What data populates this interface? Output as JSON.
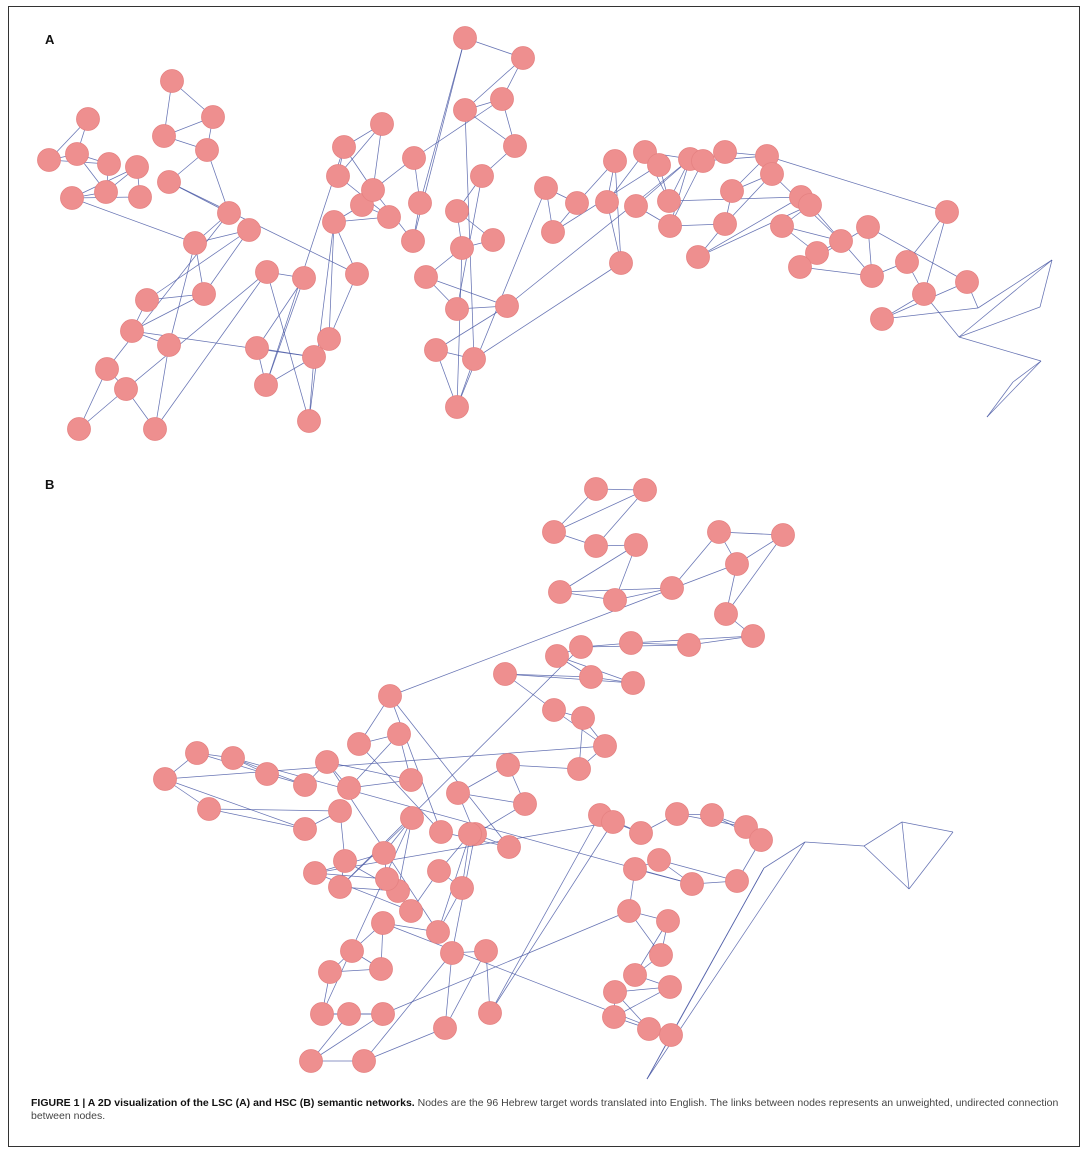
{
  "panels": {
    "a_label": "A",
    "b_label": "B"
  },
  "colors": {
    "node_fill": "#ee8f8f",
    "edge": "#4b5aa6",
    "border": "#333333"
  },
  "caption": {
    "bold": "FIGURE 1 | A 2D visualization of the LSC (A) and HSC (B) semantic networks.",
    "text": " Nodes are the 96 Hebrew target words translated into English. The links between nodes represents an unweighted, undirected connection between nodes."
  },
  "networks": [
    {
      "id": "A",
      "nodes": [
        "",
        "",
        "",
        "",
        "",
        "",
        "",
        "",
        "",
        "",
        "",
        "",
        "",
        "",
        "",
        "",
        "",
        "",
        "",
        "",
        "",
        "",
        "",
        "",
        "",
        "",
        "",
        "",
        "",
        "",
        "",
        "",
        "",
        "",
        "",
        "",
        "",
        "",
        "",
        "",
        "",
        "",
        "",
        "",
        "",
        "",
        "",
        "",
        "",
        "",
        "",
        "",
        "",
        "",
        "",
        "",
        "",
        "",
        "",
        "",
        "",
        "",
        "",
        "",
        "",
        "",
        "",
        "",
        "",
        "",
        "",
        "",
        "",
        "",
        "",
        "",
        "",
        "",
        "",
        "",
        "",
        "",
        "",
        "",
        "",
        "",
        "",
        "",
        ""
      ],
      "edges": [
        [
          0,
          1
        ],
        [
          0,
          2
        ],
        [
          1,
          3
        ],
        [
          2,
          3
        ],
        [
          2,
          4
        ],
        [
          3,
          4
        ],
        [
          4,
          5
        ],
        [
          4,
          6
        ],
        [
          5,
          6
        ],
        [
          6,
          7
        ],
        [
          5,
          7
        ],
        [
          1,
          2
        ],
        [
          8,
          9
        ],
        [
          8,
          10
        ],
        [
          9,
          10
        ],
        [
          10,
          11
        ],
        [
          11,
          12
        ],
        [
          12,
          13
        ],
        [
          11,
          13
        ],
        [
          9,
          11
        ],
        [
          13,
          14
        ],
        [
          14,
          15
        ],
        [
          14,
          16
        ],
        [
          15,
          16
        ],
        [
          16,
          17
        ],
        [
          15,
          17
        ],
        [
          17,
          18
        ],
        [
          16,
          18
        ],
        [
          18,
          19
        ],
        [
          14,
          19
        ],
        [
          20,
          21
        ],
        [
          20,
          22
        ],
        [
          21,
          22
        ],
        [
          22,
          23
        ],
        [
          23,
          24
        ],
        [
          24,
          25
        ],
        [
          22,
          24
        ],
        [
          25,
          26
        ],
        [
          26,
          27
        ],
        [
          25,
          27
        ],
        [
          27,
          28
        ],
        [
          26,
          28
        ],
        [
          28,
          29
        ],
        [
          24,
          29
        ],
        [
          30,
          31
        ],
        [
          31,
          32
        ],
        [
          30,
          32
        ],
        [
          32,
          33
        ],
        [
          33,
          34
        ],
        [
          34,
          35
        ],
        [
          32,
          34
        ],
        [
          35,
          36
        ],
        [
          36,
          37
        ],
        [
          35,
          37
        ],
        [
          37,
          38
        ],
        [
          38,
          39
        ],
        [
          36,
          38
        ],
        [
          39,
          40
        ],
        [
          40,
          41
        ],
        [
          41,
          42
        ],
        [
          40,
          42
        ],
        [
          42,
          43
        ],
        [
          43,
          44
        ],
        [
          44,
          45
        ],
        [
          43,
          45
        ],
        [
          45,
          46
        ],
        [
          46,
          47
        ],
        [
          44,
          46
        ],
        [
          47,
          48
        ],
        [
          48,
          49
        ],
        [
          49,
          50
        ],
        [
          48,
          50
        ],
        [
          50,
          51
        ],
        [
          51,
          52
        ],
        [
          52,
          53
        ],
        [
          51,
          53
        ],
        [
          53,
          54
        ],
        [
          54,
          55
        ],
        [
          55,
          56
        ],
        [
          54,
          56
        ],
        [
          56,
          57
        ],
        [
          57,
          58
        ],
        [
          58,
          59
        ],
        [
          57,
          59
        ],
        [
          59,
          60
        ],
        [
          60,
          61
        ],
        [
          61,
          62
        ],
        [
          60,
          62
        ],
        [
          62,
          63
        ],
        [
          63,
          64
        ],
        [
          64,
          65
        ],
        [
          63,
          65
        ],
        [
          65,
          66
        ],
        [
          66,
          67
        ],
        [
          67,
          68
        ],
        [
          66,
          68
        ],
        [
          68,
          69
        ],
        [
          69,
          70
        ],
        [
          70,
          71
        ],
        [
          69,
          71
        ],
        [
          71,
          72
        ],
        [
          72,
          73
        ],
        [
          73,
          74
        ],
        [
          72,
          74
        ],
        [
          74,
          75
        ],
        [
          75,
          76
        ],
        [
          76,
          77
        ],
        [
          75,
          77
        ],
        [
          77,
          78
        ],
        [
          78,
          79
        ],
        [
          79,
          80
        ],
        [
          78,
          80
        ],
        [
          80,
          81
        ],
        [
          81,
          82
        ],
        [
          82,
          83
        ],
        [
          81,
          83
        ],
        [
          83,
          84
        ],
        [
          84,
          85
        ],
        [
          85,
          86
        ],
        [
          84,
          86
        ],
        [
          86,
          87
        ],
        [
          87,
          88
        ],
        [
          88,
          89
        ],
        [
          87,
          89
        ],
        [
          89,
          90
        ],
        [
          90,
          91
        ],
        [
          91,
          92
        ],
        [
          90,
          92
        ],
        [
          92,
          93
        ],
        [
          93,
          94
        ],
        [
          94,
          95
        ],
        [
          93,
          95
        ],
        [
          6,
          14
        ],
        [
          13,
          20
        ],
        [
          19,
          23
        ],
        [
          29,
          32
        ],
        [
          12,
          31
        ],
        [
          38,
          41
        ],
        [
          39,
          45
        ],
        [
          47,
          52
        ],
        [
          50,
          56
        ],
        [
          55,
          61
        ],
        [
          58,
          64
        ],
        [
          63,
          69
        ],
        [
          68,
          74
        ],
        [
          73,
          79
        ],
        [
          77,
          83
        ],
        [
          82,
          88
        ],
        [
          86,
          92
        ],
        [
          18,
          28
        ],
        [
          27,
          36
        ],
        [
          44,
          55
        ],
        [
          53,
          66
        ],
        [
          65,
          76
        ],
        [
          71,
          85
        ]
      ]
    },
    {
      "id": "B",
      "nodes": [
        "",
        "",
        "",
        "",
        "",
        "",
        "",
        "",
        "",
        "",
        "",
        "",
        "",
        "",
        "",
        "",
        "",
        "",
        "",
        "",
        "",
        "",
        "",
        "",
        "",
        "",
        "",
        "",
        "",
        "",
        "",
        "",
        "",
        "",
        "",
        "",
        "",
        "",
        "",
        "",
        "",
        "",
        "",
        "",
        "",
        "",
        "",
        "",
        "",
        "",
        "",
        "",
        "",
        "",
        "",
        "",
        "",
        "",
        "",
        "",
        "",
        "",
        "",
        "",
        "",
        "",
        "",
        "",
        "",
        "",
        "",
        "",
        "",
        "",
        "",
        "",
        "",
        "",
        "",
        "",
        "",
        "",
        "",
        "",
        "",
        "",
        "",
        "",
        ""
      ],
      "edges": [
        [
          0,
          1
        ],
        [
          0,
          2
        ],
        [
          1,
          2
        ],
        [
          2,
          3
        ],
        [
          3,
          4
        ],
        [
          1,
          3
        ],
        [
          4,
          5
        ],
        [
          5,
          6
        ],
        [
          4,
          6
        ],
        [
          6,
          7
        ],
        [
          7,
          8
        ],
        [
          5,
          7
        ],
        [
          8,
          9
        ],
        [
          9,
          10
        ],
        [
          8,
          10
        ],
        [
          10,
          11
        ],
        [
          11,
          12
        ],
        [
          9,
          11
        ],
        [
          12,
          13
        ],
        [
          13,
          14
        ],
        [
          12,
          14
        ],
        [
          14,
          15
        ],
        [
          15,
          16
        ],
        [
          13,
          15
        ],
        [
          16,
          17
        ],
        [
          17,
          18
        ],
        [
          16,
          18
        ],
        [
          18,
          19
        ],
        [
          19,
          20
        ],
        [
          17,
          19
        ],
        [
          20,
          21
        ],
        [
          21,
          22
        ],
        [
          20,
          22
        ],
        [
          22,
          23
        ],
        [
          23,
          24
        ],
        [
          21,
          23
        ],
        [
          24,
          25
        ],
        [
          25,
          26
        ],
        [
          24,
          26
        ],
        [
          26,
          27
        ],
        [
          27,
          28
        ],
        [
          25,
          27
        ],
        [
          28,
          29
        ],
        [
          29,
          30
        ],
        [
          28,
          30
        ],
        [
          30,
          31
        ],
        [
          31,
          32
        ],
        [
          29,
          31
        ],
        [
          32,
          33
        ],
        [
          33,
          34
        ],
        [
          32,
          34
        ],
        [
          34,
          35
        ],
        [
          35,
          36
        ],
        [
          33,
          35
        ],
        [
          36,
          37
        ],
        [
          37,
          38
        ],
        [
          36,
          38
        ],
        [
          38,
          39
        ],
        [
          39,
          40
        ],
        [
          37,
          39
        ],
        [
          40,
          41
        ],
        [
          41,
          42
        ],
        [
          40,
          42
        ],
        [
          42,
          43
        ],
        [
          43,
          44
        ],
        [
          41,
          43
        ],
        [
          44,
          45
        ],
        [
          45,
          46
        ],
        [
          44,
          46
        ],
        [
          46,
          47
        ],
        [
          47,
          48
        ],
        [
          45,
          47
        ],
        [
          48,
          49
        ],
        [
          49,
          50
        ],
        [
          48,
          50
        ],
        [
          50,
          51
        ],
        [
          51,
          52
        ],
        [
          49,
          51
        ],
        [
          52,
          53
        ],
        [
          53,
          54
        ],
        [
          52,
          54
        ],
        [
          54,
          55
        ],
        [
          55,
          56
        ],
        [
          53,
          55
        ],
        [
          56,
          57
        ],
        [
          57,
          58
        ],
        [
          56,
          58
        ],
        [
          58,
          59
        ],
        [
          59,
          60
        ],
        [
          57,
          59
        ],
        [
          60,
          61
        ],
        [
          61,
          62
        ],
        [
          60,
          62
        ],
        [
          62,
          63
        ],
        [
          63,
          64
        ],
        [
          61,
          63
        ],
        [
          64,
          65
        ],
        [
          65,
          66
        ],
        [
          64,
          66
        ],
        [
          66,
          67
        ],
        [
          67,
          68
        ],
        [
          65,
          67
        ],
        [
          68,
          69
        ],
        [
          69,
          70
        ],
        [
          68,
          70
        ],
        [
          70,
          71
        ],
        [
          71,
          72
        ],
        [
          69,
          71
        ],
        [
          72,
          73
        ],
        [
          73,
          74
        ],
        [
          72,
          74
        ],
        [
          74,
          75
        ],
        [
          75,
          76
        ],
        [
          73,
          75
        ],
        [
          76,
          77
        ],
        [
          77,
          78
        ],
        [
          76,
          78
        ],
        [
          78,
          79
        ],
        [
          79,
          80
        ],
        [
          77,
          79
        ],
        [
          80,
          81
        ],
        [
          81,
          82
        ],
        [
          80,
          82
        ],
        [
          82,
          83
        ],
        [
          83,
          84
        ],
        [
          81,
          83
        ],
        [
          84,
          85
        ],
        [
          85,
          86
        ],
        [
          84,
          86
        ],
        [
          86,
          87
        ],
        [
          87,
          88
        ],
        [
          85,
          87
        ],
        [
          88,
          89
        ],
        [
          89,
          90
        ],
        [
          88,
          90
        ],
        [
          90,
          91
        ],
        [
          91,
          92
        ],
        [
          89,
          91
        ],
        [
          92,
          93
        ],
        [
          93,
          94
        ],
        [
          92,
          94
        ],
        [
          94,
          95
        ],
        [
          93,
          95
        ],
        [
          10,
          30
        ],
        [
          22,
          40
        ],
        [
          35,
          55
        ],
        [
          47,
          60
        ],
        [
          50,
          70
        ],
        [
          62,
          80
        ],
        [
          15,
          45
        ],
        [
          27,
          66
        ],
        [
          38,
          77
        ],
        [
          56,
          88
        ]
      ]
    }
  ]
}
